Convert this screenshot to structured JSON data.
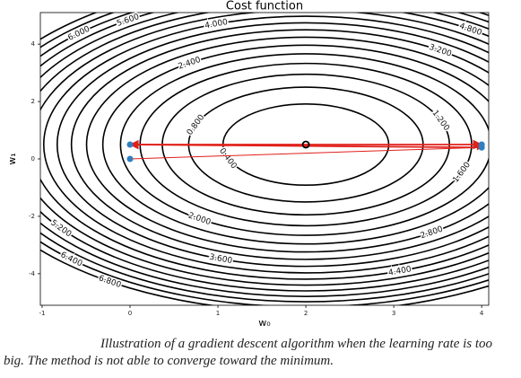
{
  "chart_data": {
    "type": "contour",
    "title": "Cost function",
    "x_label": "w₀",
    "y_label": "w₁",
    "xlim": [
      -1.02,
      4.08
    ],
    "ylim": [
      -5.1,
      5.1
    ],
    "xticks": [
      -1,
      0,
      1,
      2,
      3,
      4
    ],
    "yticks": [
      -4,
      -2,
      0,
      2,
      4
    ],
    "levels": [
      0.4,
      0.8,
      1.2,
      1.6,
      2.0,
      2.4,
      2.8,
      3.2,
      3.6,
      4.0,
      4.4,
      4.8,
      5.2,
      5.6,
      6.0,
      6.4,
      6.8
    ],
    "level_labels": [
      "0.400",
      "0.800",
      "1.200",
      "1.600",
      "2.000",
      "2.400",
      "2.800",
      "3.200",
      "3.600",
      "4.000",
      "4.400",
      "4.800",
      "5.200",
      "5.600",
      "6.000",
      "6.400",
      "6.800"
    ],
    "minimum": {
      "x": 2,
      "y": 0.5
    },
    "path": {
      "color": "#e0201b",
      "point_color": "#2f7fc1",
      "x": [
        0,
        4,
        0,
        4
      ],
      "y": [
        0,
        0.4,
        0.5,
        0.5
      ]
    }
  },
  "caption": "Illustration of a gradient descent algorithm when the learning rate is too big. The method is not able to converge toward the minimum."
}
